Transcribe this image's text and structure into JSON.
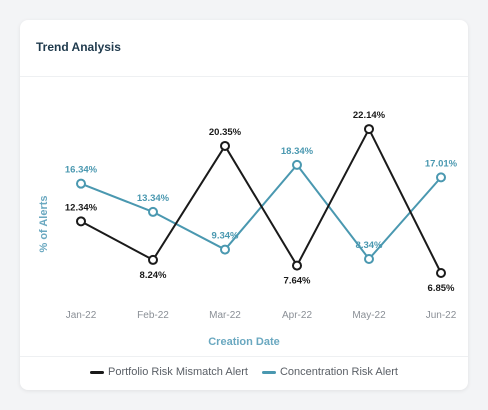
{
  "card": {
    "title": "Trend Analysis"
  },
  "colors": {
    "portfolio": "#1a1a1a",
    "concentration": "#4a98b0",
    "axis_label": "#6aa8c0",
    "tick": "#8a8f96",
    "point_label_concentration": "#4a98b0",
    "point_label_portfolio": "#1a1a1a"
  },
  "chart_data": {
    "type": "line",
    "title": "",
    "xlabel": "Creation Date",
    "ylabel": "% of Alerts",
    "categories": [
      "Jan-22",
      "Feb-22",
      "Mar-22",
      "Apr-22",
      "May-22",
      "Jun-22"
    ],
    "series": [
      {
        "name": "Portfolio Risk Mismatch Alert",
        "values": [
          12.34,
          8.24,
          20.35,
          7.64,
          22.14,
          6.85
        ],
        "labels": [
          "12.34%",
          "8.24%",
          "20.35%",
          "7.64%",
          "22.14%",
          "6.85%"
        ],
        "label_positions": [
          "above",
          "below",
          "above",
          "below",
          "above",
          "below"
        ]
      },
      {
        "name": "Concentration Risk Alert",
        "values": [
          16.34,
          13.34,
          9.34,
          18.34,
          8.34,
          17.01
        ],
        "labels": [
          "16.34%",
          "13.34%",
          "9.34%",
          "18.34%",
          "8.34%",
          "17.01%"
        ],
        "label_positions": [
          "above",
          "above",
          "above",
          "above",
          "above",
          "above"
        ]
      }
    ],
    "y_axis_visible": false,
    "grid": false,
    "legend_position": "bottom"
  }
}
